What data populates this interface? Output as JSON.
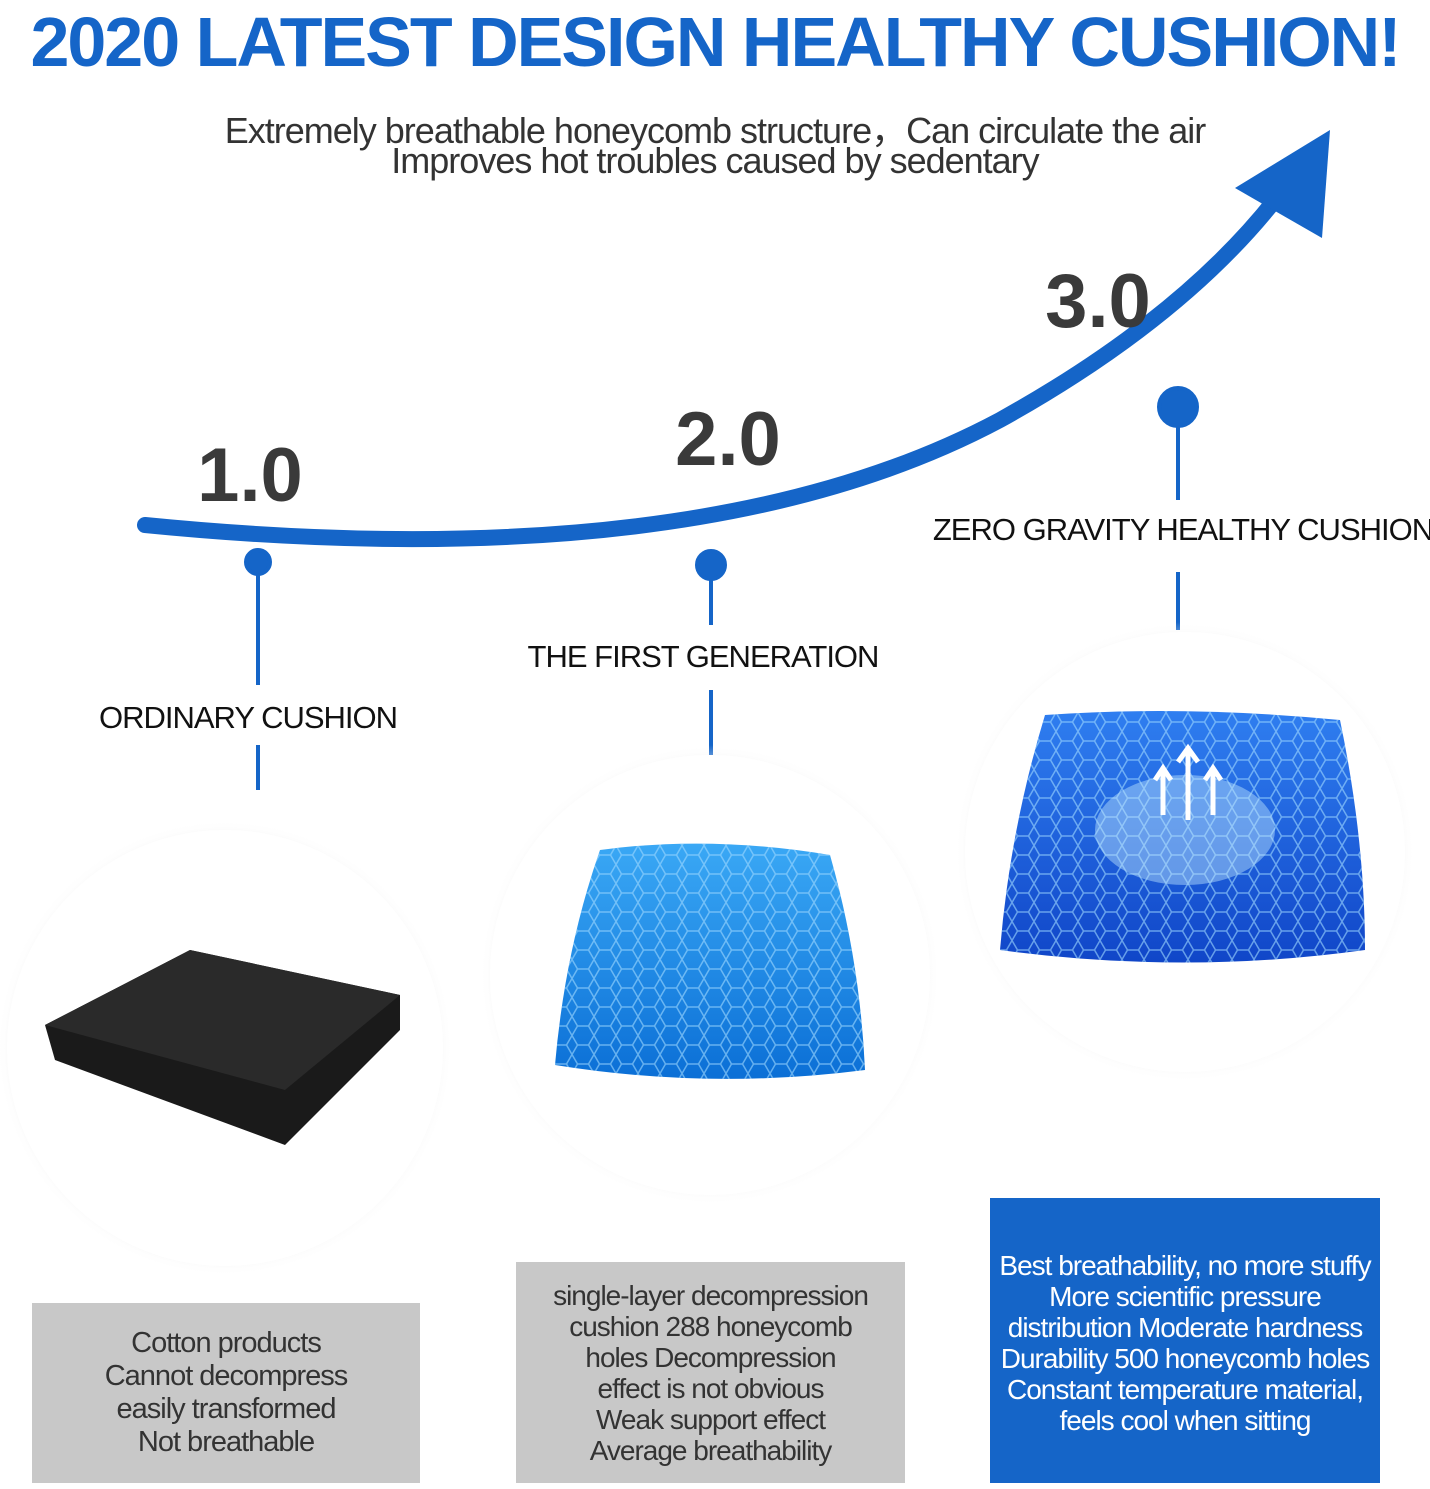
{
  "header": {
    "title": "2020 LATEST DESIGN HEALTHY CUSHION!",
    "subtitle": [
      "Extremely breathable honeycomb structure，Can circulate the air",
      "Improves hot troubles caused by sedentary"
    ]
  },
  "stages": [
    {
      "version": "1.0",
      "name": "ORDINARY CUSHION",
      "description": [
        "Cotton products",
        "Cannot decompress",
        "easily transformed",
        "Not breathable"
      ]
    },
    {
      "version": "2.0",
      "name": "THE FIRST GENERATION",
      "description": [
        "single-layer decompression",
        "cushion 288 honeycomb",
        "holes  Decompression",
        "effect is not obvious",
        "Weak support effect",
        "Average breathability"
      ]
    },
    {
      "version": "3.0",
      "name": "ZERO GRAVITY HEALTHY CUSHION",
      "description": [
        "Best breathability, no more stuffy",
        "More scientific pressure",
        "distribution Moderate hardness",
        "Durability 500 honeycomb holes",
        "Constant temperature material,",
        "feels cool when sitting"
      ]
    }
  ]
}
